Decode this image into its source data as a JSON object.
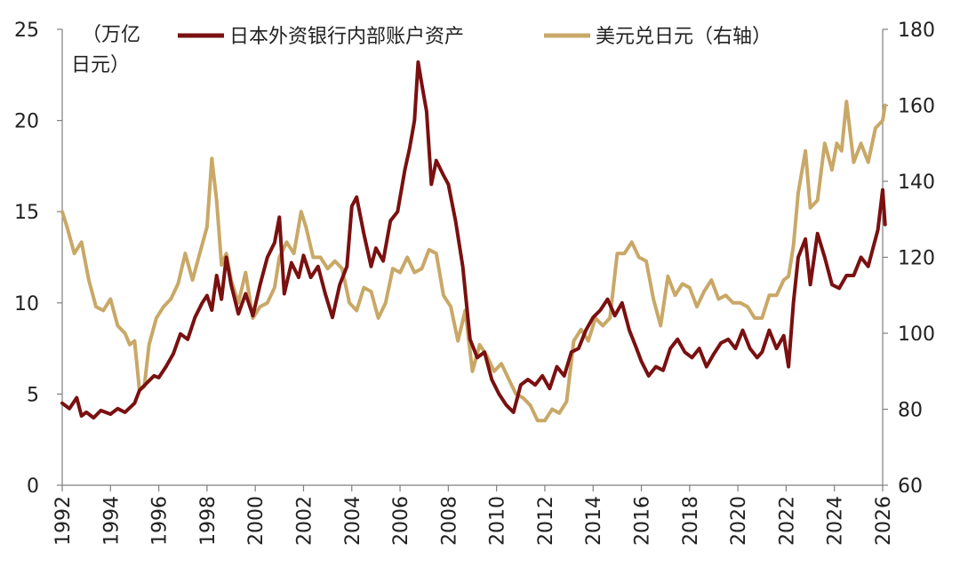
{
  "chart_data": {
    "type": "line",
    "left_unit": [
      "（万亿",
      "日元）"
    ],
    "x_ticks": [
      "1992",
      "1994",
      "1996",
      "1998",
      "2000",
      "2002",
      "2004",
      "2006",
      "2008",
      "2010",
      "2012",
      "2014",
      "2016",
      "2018",
      "2020",
      "2022",
      "2024",
      "2026"
    ],
    "xlim": [
      1992,
      2026
    ],
    "y_left": {
      "ticks": [
        0,
        5,
        10,
        15,
        20,
        25
      ],
      "lim": [
        0,
        25
      ]
    },
    "y_right": {
      "ticks": [
        60,
        80,
        100,
        120,
        140,
        160,
        180
      ],
      "lim": [
        60,
        180
      ]
    },
    "grid": false,
    "legend_position": "top",
    "series": [
      {
        "name": "日本外资银行内部账户资产",
        "axis": "left",
        "color": "#7a1010",
        "x": [
          1992.0,
          1992.3,
          1992.6,
          1992.8,
          1993.0,
          1993.3,
          1993.6,
          1994.0,
          1994.3,
          1994.6,
          1995.0,
          1995.2,
          1995.5,
          1995.8,
          1996.0,
          1996.3,
          1996.6,
          1996.9,
          1997.2,
          1997.5,
          1997.8,
          1998.0,
          1998.2,
          1998.4,
          1998.6,
          1998.8,
          1999.0,
          1999.3,
          1999.6,
          1999.9,
          2000.2,
          2000.5,
          2000.8,
          2001.0,
          2001.2,
          2001.5,
          2001.8,
          2002.0,
          2002.3,
          2002.6,
          2002.9,
          2003.2,
          2003.5,
          2003.8,
          2004.0,
          2004.2,
          2004.5,
          2004.8,
          2005.0,
          2005.3,
          2005.6,
          2005.9,
          2006.2,
          2006.4,
          2006.6,
          2006.75,
          2006.9,
          2007.1,
          2007.3,
          2007.5,
          2007.8,
          2008.0,
          2008.3,
          2008.6,
          2008.9,
          2009.2,
          2009.5,
          2009.8,
          2010.1,
          2010.4,
          2010.7,
          2011.0,
          2011.3,
          2011.6,
          2011.9,
          2012.2,
          2012.5,
          2012.8,
          2013.1,
          2013.4,
          2013.7,
          2014.0,
          2014.3,
          2014.6,
          2014.9,
          2015.2,
          2015.5,
          2015.8,
          2016.0,
          2016.3,
          2016.6,
          2016.9,
          2017.2,
          2017.5,
          2017.8,
          2018.1,
          2018.4,
          2018.7,
          2019.0,
          2019.3,
          2019.6,
          2019.9,
          2020.2,
          2020.5,
          2020.8,
          2021.0,
          2021.3,
          2021.6,
          2021.9,
          2022.1,
          2022.3,
          2022.5,
          2022.8,
          2023.0,
          2023.3,
          2023.6,
          2023.9,
          2024.2,
          2024.5,
          2024.8,
          2025.1,
          2025.4,
          2025.6,
          2025.8,
          2026.0,
          2026.1
        ],
        "values": [
          4.5,
          4.2,
          4.8,
          3.8,
          4.0,
          3.7,
          4.1,
          3.9,
          4.2,
          4.0,
          4.5,
          5.2,
          5.6,
          6.0,
          5.9,
          6.5,
          7.2,
          8.3,
          8.0,
          9.2,
          10.0,
          10.4,
          9.6,
          11.5,
          10.2,
          12.5,
          11.0,
          9.4,
          10.5,
          9.3,
          11.0,
          12.5,
          13.3,
          14.7,
          10.5,
          12.2,
          11.4,
          12.6,
          11.4,
          12.0,
          10.5,
          9.2,
          11.0,
          12.0,
          15.3,
          15.8,
          13.8,
          12.0,
          13.0,
          12.3,
          14.5,
          15.0,
          17.3,
          18.5,
          20.0,
          23.2,
          22.0,
          20.5,
          16.5,
          17.8,
          17.0,
          16.5,
          14.5,
          12.0,
          8.0,
          7.0,
          7.3,
          5.8,
          5.0,
          4.4,
          4.0,
          5.5,
          5.8,
          5.5,
          6.0,
          5.3,
          6.5,
          6.0,
          7.3,
          7.5,
          8.5,
          9.2,
          9.6,
          10.2,
          9.3,
          10.0,
          8.5,
          7.5,
          6.8,
          6.0,
          6.5,
          6.3,
          7.5,
          8.0,
          7.3,
          7.0,
          7.5,
          6.5,
          7.2,
          7.8,
          8.0,
          7.5,
          8.5,
          7.5,
          7.0,
          7.3,
          8.5,
          7.5,
          8.2,
          6.5,
          10.0,
          12.5,
          13.5,
          11.0,
          13.8,
          12.5,
          11.0,
          10.8,
          11.5,
          11.5,
          12.5,
          12.0,
          13.0,
          14.0,
          16.2,
          14.3
        ]
      },
      {
        "name": "美元兑日元（右轴）",
        "axis": "right",
        "color": "#c9a867",
        "x": [
          1992.0,
          1992.2,
          1992.5,
          1992.8,
          1993.1,
          1993.4,
          1993.7,
          1994.0,
          1994.3,
          1994.6,
          1994.8,
          1995.0,
          1995.2,
          1995.4,
          1995.6,
          1995.9,
          1996.2,
          1996.5,
          1996.8,
          1997.1,
          1997.4,
          1997.7,
          1998.0,
          1998.2,
          1998.4,
          1998.6,
          1998.8,
          1999.0,
          1999.3,
          1999.6,
          1999.9,
          2000.2,
          2000.5,
          2000.8,
          2001.0,
          2001.3,
          2001.6,
          2001.9,
          2002.1,
          2002.4,
          2002.7,
          2003.0,
          2003.3,
          2003.6,
          2003.9,
          2004.2,
          2004.5,
          2004.8,
          2005.1,
          2005.4,
          2005.7,
          2006.0,
          2006.3,
          2006.6,
          2006.9,
          2007.2,
          2007.5,
          2007.8,
          2008.1,
          2008.4,
          2008.7,
          2009.0,
          2009.3,
          2009.6,
          2009.9,
          2010.2,
          2010.5,
          2010.8,
          2011.1,
          2011.4,
          2011.7,
          2012.0,
          2012.3,
          2012.6,
          2012.9,
          2013.2,
          2013.5,
          2013.8,
          2014.1,
          2014.4,
          2014.7,
          2015.0,
          2015.3,
          2015.6,
          2015.9,
          2016.2,
          2016.5,
          2016.8,
          2017.1,
          2017.4,
          2017.7,
          2018.0,
          2018.3,
          2018.6,
          2018.9,
          2019.2,
          2019.5,
          2019.8,
          2020.1,
          2020.4,
          2020.7,
          2021.0,
          2021.3,
          2021.6,
          2021.9,
          2022.1,
          2022.3,
          2022.5,
          2022.8,
          2023.0,
          2023.3,
          2023.6,
          2023.9,
          2024.1,
          2024.3,
          2024.5,
          2024.8,
          2025.1,
          2025.4,
          2025.7,
          2026.0,
          2026.1
        ],
        "values": [
          132,
          128,
          121,
          124,
          114,
          107,
          106,
          109,
          102,
          100,
          97,
          98,
          85,
          86,
          97,
          104,
          107,
          109,
          113,
          121,
          114,
          121,
          128,
          146,
          135,
          118,
          121,
          114,
          108,
          116,
          104,
          107,
          108,
          112,
          120,
          124,
          121,
          132,
          128,
          120,
          120,
          117,
          119,
          117,
          108,
          106,
          112,
          111,
          104,
          108,
          117,
          116,
          120,
          116,
          117,
          122,
          121,
          110,
          107,
          98,
          106,
          90,
          97,
          94,
          90,
          92,
          88,
          84,
          83,
          81,
          77,
          77,
          80,
          79,
          82,
          98,
          101,
          98,
          104,
          102,
          104,
          121,
          121,
          124,
          120,
          119,
          109,
          102,
          115,
          110,
          113,
          112,
          107,
          111,
          114,
          109,
          110,
          108,
          108,
          107,
          104,
          104,
          110,
          110,
          114,
          115,
          123,
          137,
          148,
          133,
          135,
          150,
          143,
          150,
          148,
          161,
          145,
          150,
          145,
          154,
          156,
          160
        ]
      }
    ]
  }
}
